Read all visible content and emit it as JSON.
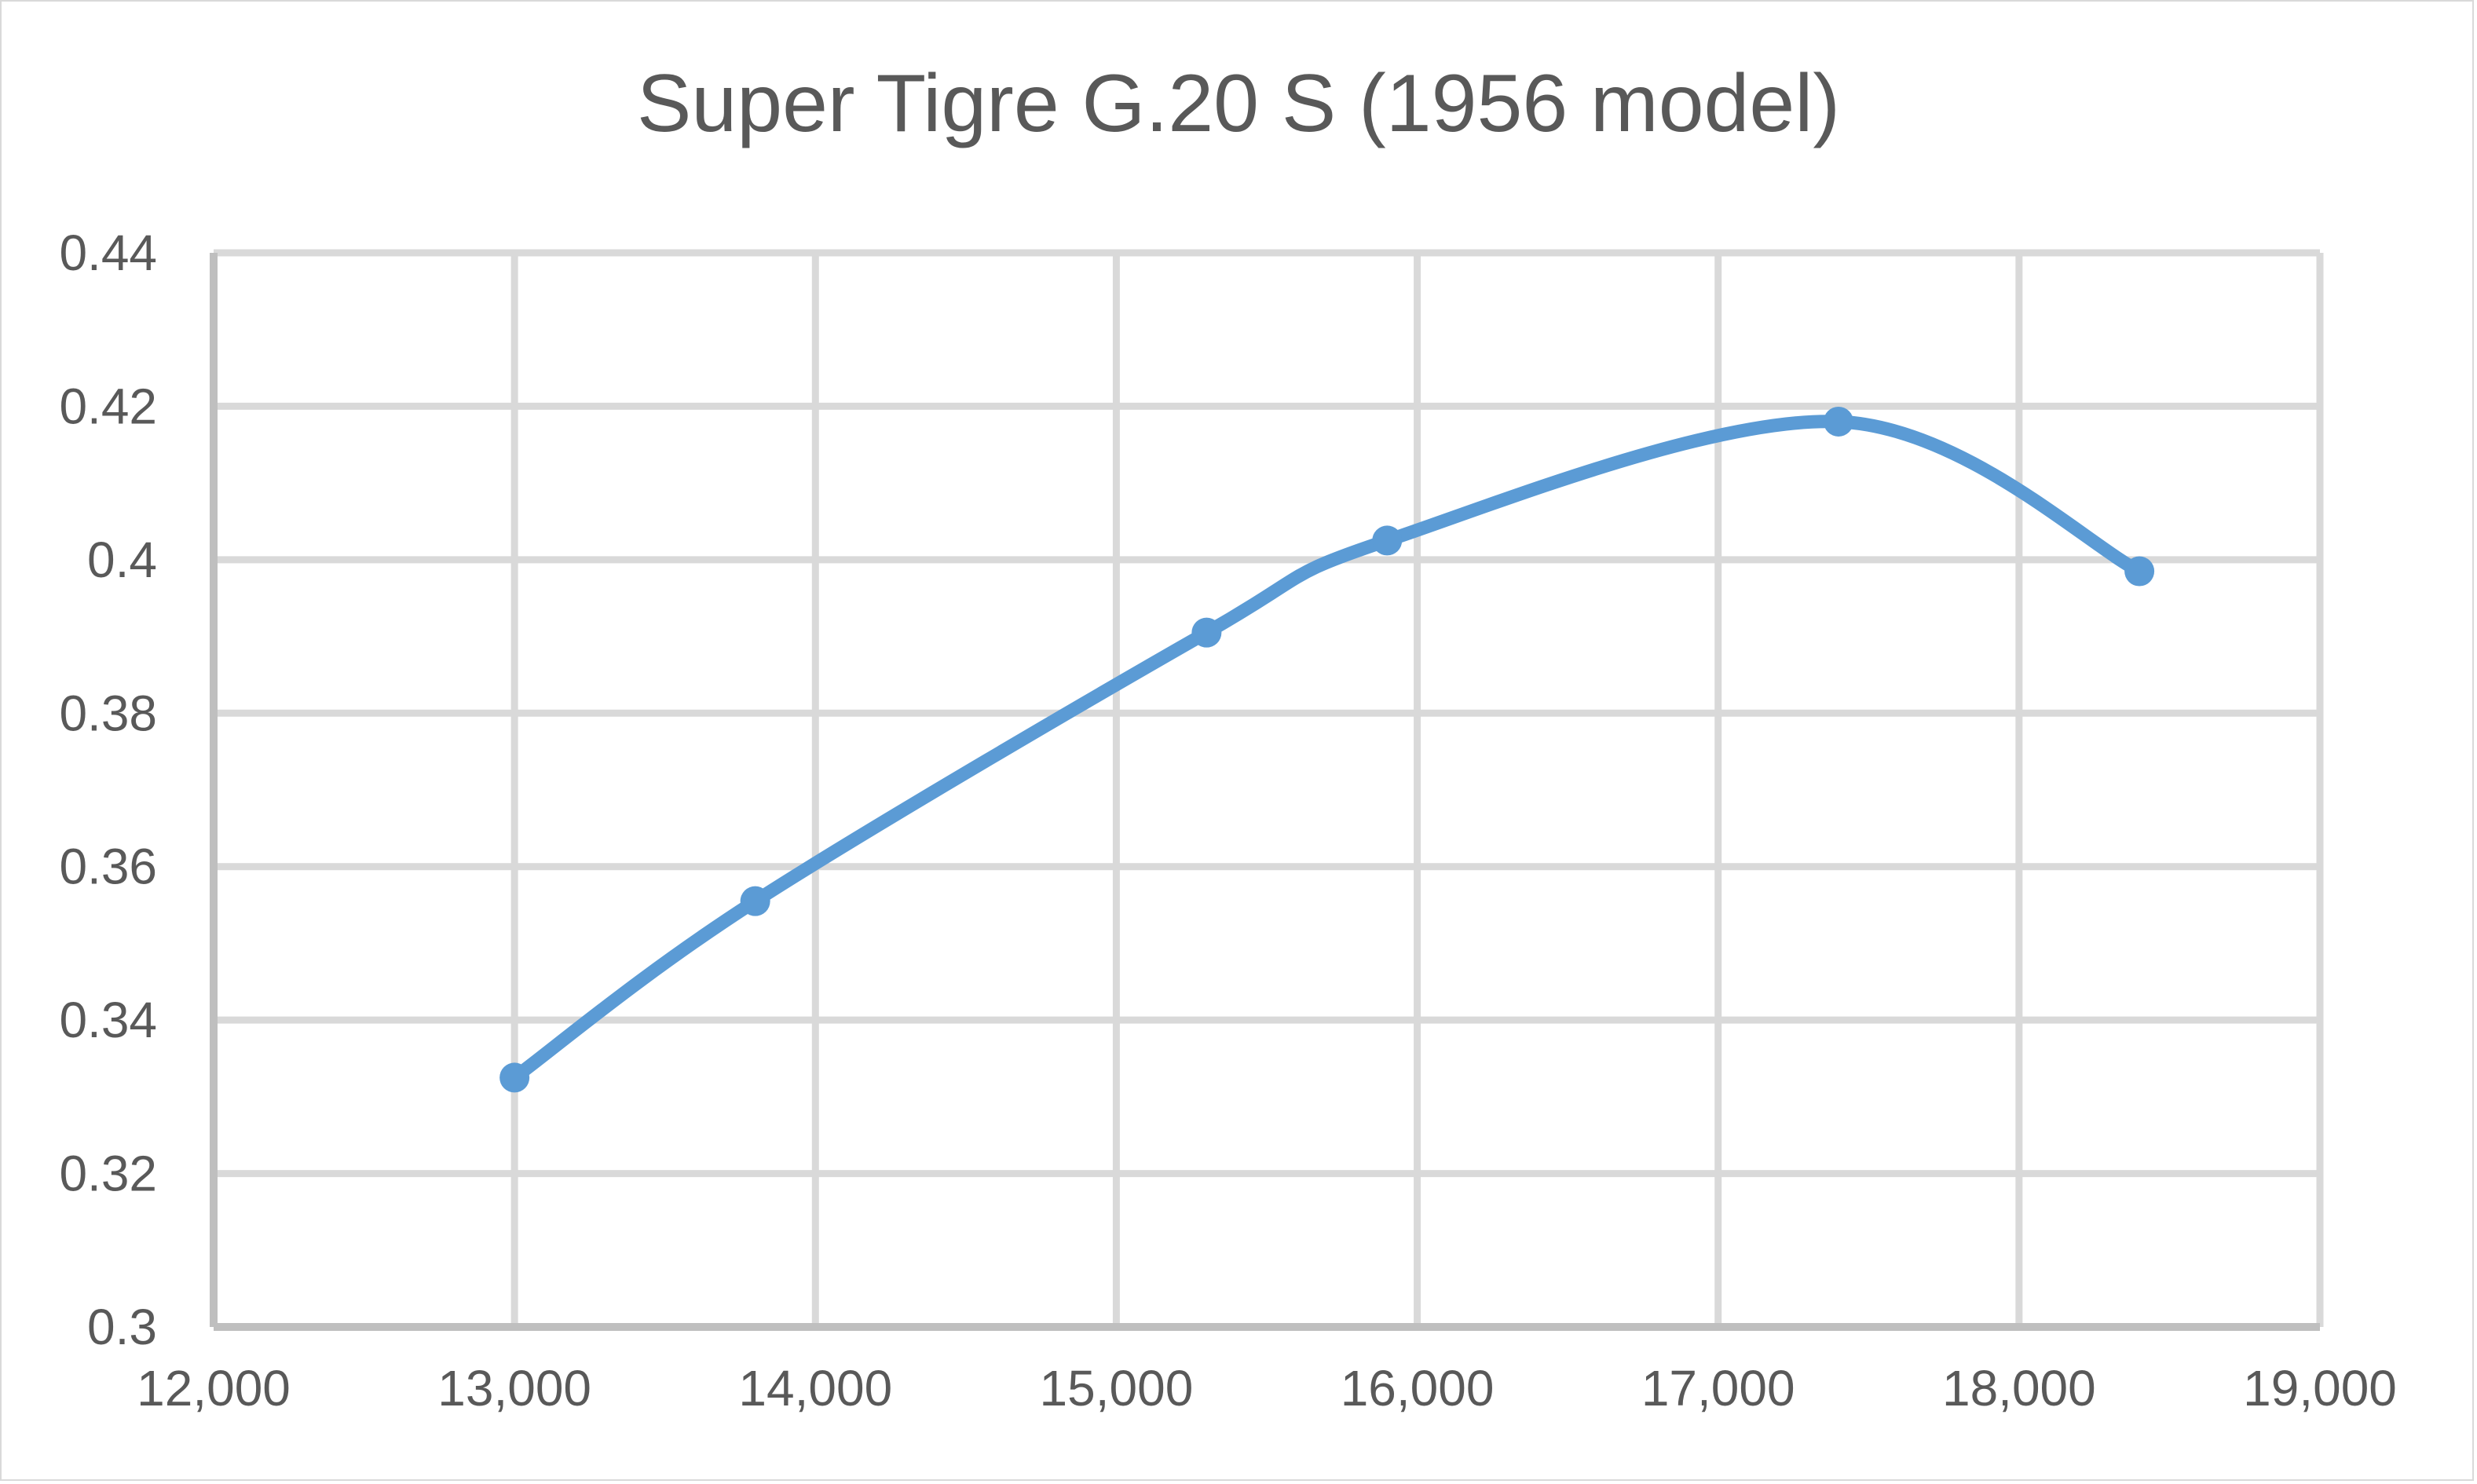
{
  "chart_data": {
    "type": "line",
    "title": "Super Tigre G.20 S (1956 model)",
    "xlabel": "",
    "ylabel": "",
    "xlim": [
      12000,
      19000
    ],
    "ylim": [
      0.3,
      0.44
    ],
    "x_ticks": [
      "12,000",
      "13,000",
      "14,000",
      "15,000",
      "16,000",
      "17,000",
      "18,000",
      "19,000"
    ],
    "y_ticks": [
      "0.44",
      "0.42",
      "0.4",
      "0.38",
      "0.36",
      "0.34",
      "0.32",
      "0.3"
    ],
    "grid": true,
    "legend": "none",
    "smooth": true,
    "series": [
      {
        "color": "#5b9bd5",
        "points": [
          {
            "x": 13000,
            "y": 0.3325
          },
          {
            "x": 13800,
            "y": 0.3555
          },
          {
            "x": 15300,
            "y": 0.3905
          },
          {
            "x": 15900,
            "y": 0.4025
          },
          {
            "x": 17400,
            "y": 0.418
          },
          {
            "x": 18400,
            "y": 0.3985
          }
        ]
      }
    ]
  }
}
